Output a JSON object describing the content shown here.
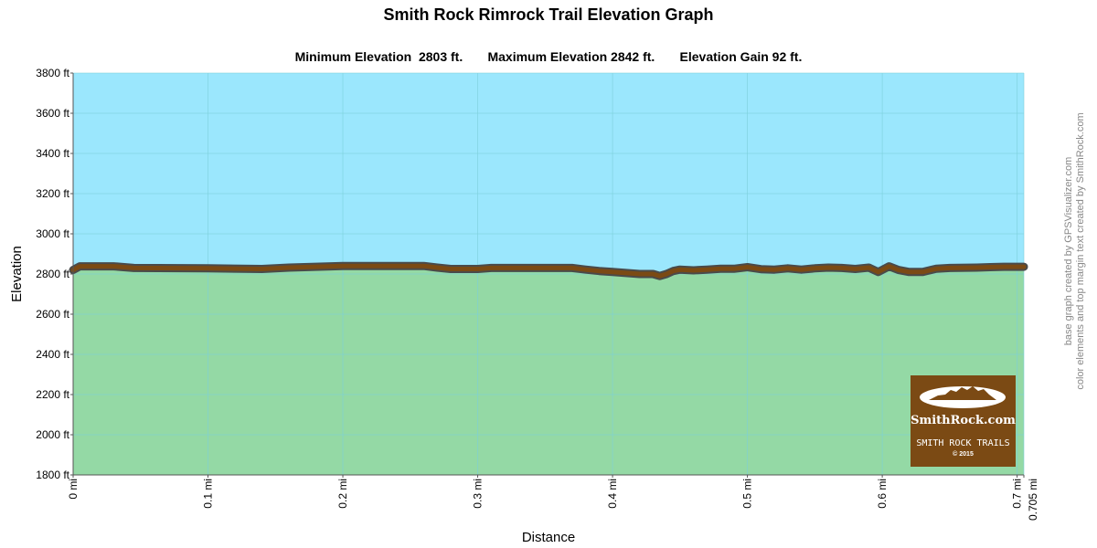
{
  "chart_data": {
    "type": "area",
    "title": "Smith Rock Rimrock Trail Elevation Graph",
    "stats": {
      "min_label": "Minimum Elevation  2803 ft.",
      "max_label": "Maximum Elevation 2842 ft.",
      "gain_label": "Elevation Gain 92 ft."
    },
    "xlabel": "Distance",
    "ylabel": "Elevation",
    "xlim": [
      0,
      0.705
    ],
    "ylim": [
      1800,
      3800
    ],
    "x_ticks": [
      {
        "value": 0,
        "label": "0 mi"
      },
      {
        "value": 0.1,
        "label": "0.1 mi"
      },
      {
        "value": 0.2,
        "label": "0.2 mi"
      },
      {
        "value": 0.3,
        "label": "0.3 mi"
      },
      {
        "value": 0.4,
        "label": "0.4 mi"
      },
      {
        "value": 0.5,
        "label": "0.5 mi"
      },
      {
        "value": 0.6,
        "label": "0.6 mi"
      },
      {
        "value": 0.7,
        "label": "0.7 mi"
      },
      {
        "value": 0.705,
        "label": "0.705 mi"
      }
    ],
    "y_ticks": [
      {
        "value": 1800,
        "label": "1800 ft"
      },
      {
        "value": 2000,
        "label": "2000 ft"
      },
      {
        "value": 2200,
        "label": "2200 ft"
      },
      {
        "value": 2400,
        "label": "2400 ft"
      },
      {
        "value": 2600,
        "label": "2600 ft"
      },
      {
        "value": 2800,
        "label": "2800 ft"
      },
      {
        "value": 3000,
        "label": "3000 ft"
      },
      {
        "value": 3200,
        "label": "3200 ft"
      },
      {
        "value": 3400,
        "label": "3400 ft"
      },
      {
        "value": 3600,
        "label": "3600 ft"
      },
      {
        "value": 3800,
        "label": "3800 ft"
      }
    ],
    "grid": true,
    "series": [
      {
        "x": [
          0,
          0.005,
          0.03,
          0.045,
          0.1,
          0.14,
          0.16,
          0.18,
          0.2,
          0.23,
          0.26,
          0.27,
          0.28,
          0.3,
          0.31,
          0.37,
          0.38,
          0.39,
          0.4,
          0.41,
          0.42,
          0.43,
          0.435,
          0.44,
          0.445,
          0.45,
          0.46,
          0.47,
          0.48,
          0.49,
          0.5,
          0.51,
          0.52,
          0.53,
          0.54,
          0.55,
          0.56,
          0.57,
          0.58,
          0.59,
          0.597,
          0.605,
          0.612,
          0.62,
          0.63,
          0.635,
          0.64,
          0.65,
          0.67,
          0.68,
          0.69,
          0.705
        ],
        "y": [
          2820,
          2838,
          2838,
          2830,
          2828,
          2825,
          2832,
          2836,
          2840,
          2840,
          2840,
          2832,
          2825,
          2825,
          2830,
          2830,
          2822,
          2815,
          2810,
          2805,
          2800,
          2800,
          2790,
          2800,
          2815,
          2822,
          2818,
          2822,
          2826,
          2826,
          2834,
          2824,
          2822,
          2828,
          2822,
          2828,
          2832,
          2830,
          2825,
          2832,
          2810,
          2838,
          2820,
          2810,
          2810,
          2818,
          2826,
          2830,
          2832,
          2834,
          2836,
          2836
        ],
        "line_color": "#7b4a14",
        "fill_color": "#94d9a5"
      }
    ],
    "colors": {
      "sky": "#9be7fd",
      "ground": "#94d9a5",
      "trail": "#7b4a14",
      "grid": "#7ccfd9"
    }
  },
  "credits": {
    "line1": "base graph created by GPSVisualizer.com",
    "line2": "color elements and top margin text created by SmithRock.com"
  },
  "badge": {
    "site": "SmithRock.com",
    "subtitle": "SMITH ROCK TRAILS",
    "copyright": "© 2015"
  }
}
